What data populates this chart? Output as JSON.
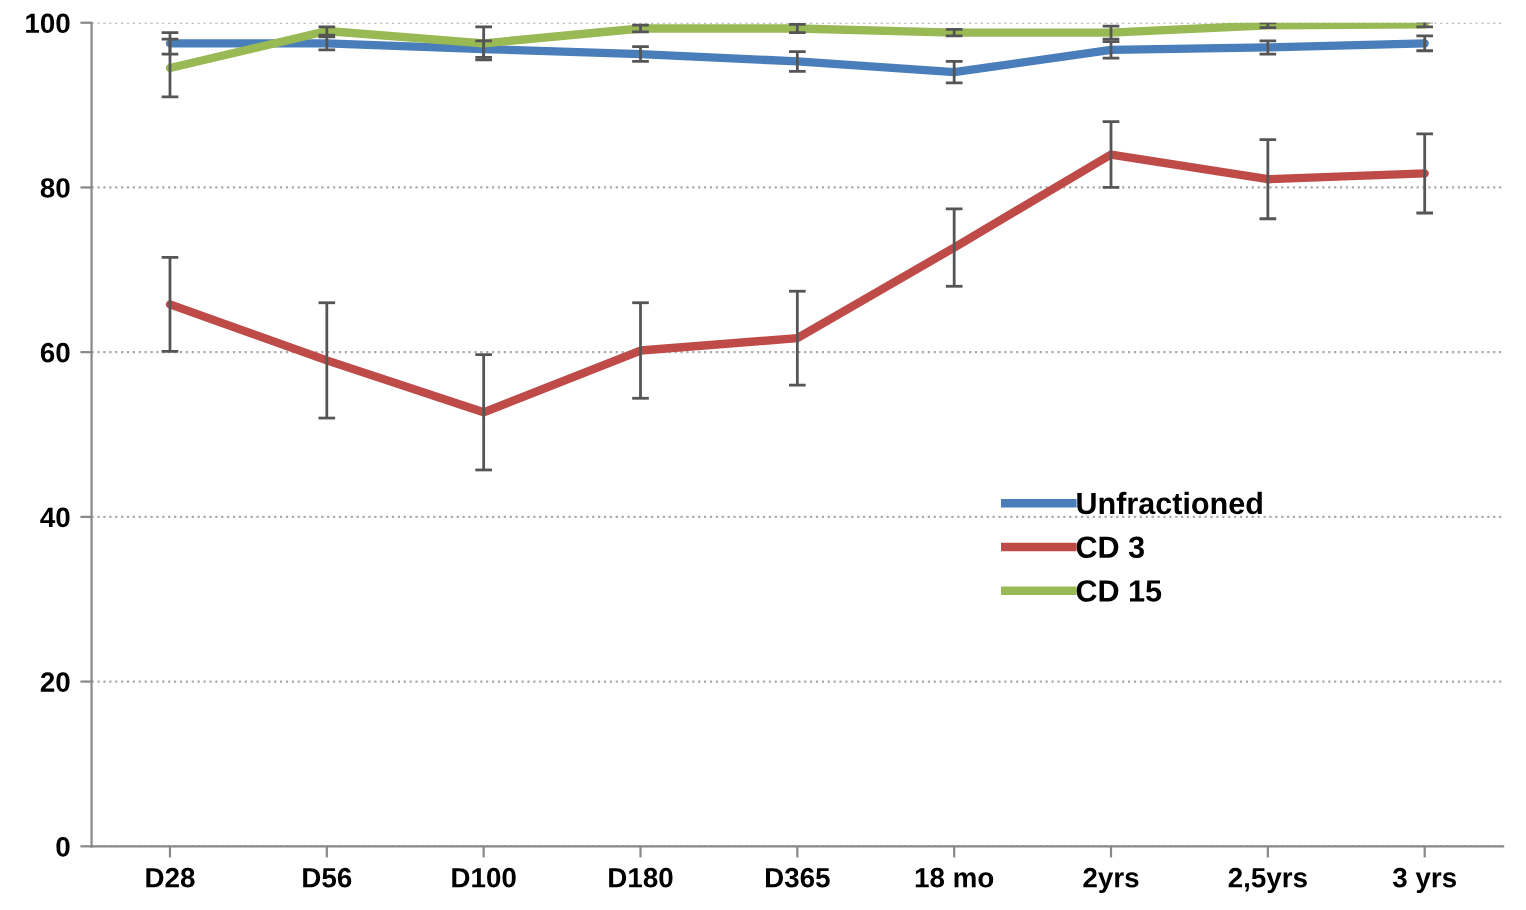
{
  "chart_data": {
    "type": "line",
    "categories": [
      "D28",
      "D56",
      "D100",
      "D180",
      "D365",
      "18 mo",
      "2yrs",
      "2,5yrs",
      "3 yrs"
    ],
    "series": [
      {
        "name": "Unfractioned",
        "color": "#4a7ebb",
        "values": [
          97.5,
          97.5,
          96.8,
          96.2,
          95.3,
          94,
          96.7,
          97,
          97.5
        ],
        "errors": [
          1.3,
          0.8,
          1,
          0.9,
          1.2,
          1.3,
          1,
          0.8,
          0.9
        ]
      },
      {
        "name": "CD 3",
        "color": "#be4b48",
        "values": [
          65.8,
          59,
          52.7,
          60.2,
          61.7,
          72.7,
          84,
          81,
          81.7
        ],
        "errors": [
          5.7,
          7,
          7,
          5.8,
          5.7,
          4.7,
          4,
          4.8,
          4.8
        ]
      },
      {
        "name": "CD 15",
        "color": "#98b954",
        "values": [
          94.5,
          99,
          97.5,
          99.3,
          99.3,
          98.8,
          98.8,
          99.7,
          99.8
        ],
        "errors": [
          3.5,
          0.5,
          2,
          0.4,
          0.5,
          0.4,
          0.8,
          0.3,
          0.3
        ]
      }
    ],
    "ylim": [
      0,
      100
    ],
    "yticks": [
      0,
      20,
      40,
      60,
      80,
      100
    ],
    "grid": "y",
    "legend": "right",
    "marker": "none",
    "line_style": "solid"
  }
}
